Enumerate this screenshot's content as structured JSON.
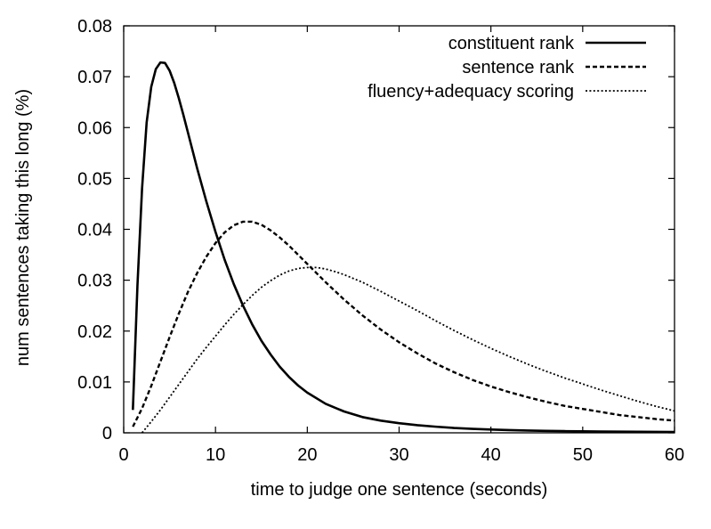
{
  "chart_data": {
    "type": "line",
    "title": "",
    "xlabel": "time to judge one sentence (seconds)",
    "ylabel": "num sentences taking this long (%)",
    "xlim": [
      0,
      60
    ],
    "ylim": [
      0,
      0.08
    ],
    "xticks": [
      "0",
      "10",
      "20",
      "30",
      "40",
      "50",
      "60"
    ],
    "yticks": [
      "0",
      "0.01",
      "0.02",
      "0.03",
      "0.04",
      "0.05",
      "0.06",
      "0.07",
      "0.08"
    ],
    "grid": false,
    "legend_position": "top-right",
    "series": [
      {
        "name": "constituent rank",
        "style": "solid",
        "x": [
          1,
          1.5,
          2,
          2.5,
          3,
          3.5,
          4,
          4.5,
          5,
          5.5,
          6,
          6.5,
          7,
          7.5,
          8,
          9,
          10,
          11,
          12,
          13,
          14,
          15,
          16,
          17,
          18,
          19,
          20,
          22,
          24,
          26,
          28,
          30,
          32,
          34,
          36,
          38,
          40,
          42,
          44,
          46,
          48,
          50,
          52,
          54,
          56,
          58,
          60
        ],
        "y": [
          0.0045,
          0.029,
          0.048,
          0.061,
          0.068,
          0.0715,
          0.0728,
          0.0727,
          0.0712,
          0.0688,
          0.0658,
          0.0625,
          0.059,
          0.0555,
          0.052,
          0.0455,
          0.0395,
          0.034,
          0.0292,
          0.025,
          0.0213,
          0.0181,
          0.0154,
          0.013,
          0.011,
          0.0093,
          0.0079,
          0.0057,
          0.0042,
          0.0031,
          0.0024,
          0.0019,
          0.0015,
          0.0012,
          0.00095,
          0.00078,
          0.00064,
          0.00053,
          0.00045,
          0.00038,
          0.00033,
          0.00029,
          0.00026,
          0.00023,
          0.00021,
          0.00019,
          0.00017
        ]
      },
      {
        "name": "sentence rank",
        "style": "dashed",
        "x": [
          1,
          2,
          3,
          4,
          5,
          6,
          7,
          8,
          9,
          10,
          11,
          12,
          13,
          14,
          15,
          16,
          17,
          18,
          19,
          20,
          22,
          24,
          26,
          28,
          30,
          32,
          34,
          36,
          38,
          40,
          42,
          44,
          46,
          48,
          50,
          52,
          54,
          56,
          58,
          60
        ],
        "y": [
          0.0012,
          0.0048,
          0.0092,
          0.014,
          0.0188,
          0.0234,
          0.0277,
          0.0314,
          0.0346,
          0.0373,
          0.0394,
          0.0408,
          0.0415,
          0.0415,
          0.0409,
          0.0398,
          0.0384,
          0.0368,
          0.035,
          0.0332,
          0.0296,
          0.0262,
          0.0231,
          0.0203,
          0.0178,
          0.0156,
          0.0136,
          0.0119,
          0.0104,
          0.0091,
          0.008,
          0.007,
          0.0061,
          0.0053,
          0.0047,
          0.0041,
          0.0035,
          0.0031,
          0.0027,
          0.0024
        ]
      },
      {
        "name": "fluency+adequacy scoring",
        "style": "dotted",
        "x": [
          2,
          3,
          4,
          5,
          6,
          7,
          8,
          9,
          10,
          11,
          12,
          13,
          14,
          15,
          16,
          17,
          18,
          19,
          20,
          21,
          22,
          23,
          24,
          26,
          28,
          30,
          32,
          34,
          36,
          38,
          40,
          42,
          44,
          46,
          48,
          50,
          52,
          54,
          56,
          58,
          60
        ],
        "y": [
          0.0,
          0.0022,
          0.0045,
          0.007,
          0.0095,
          0.012,
          0.0145,
          0.0168,
          0.019,
          0.0212,
          0.0233,
          0.0252,
          0.027,
          0.0286,
          0.0299,
          0.031,
          0.0318,
          0.0323,
          0.0325,
          0.0325,
          0.0322,
          0.0317,
          0.0311,
          0.0296,
          0.0278,
          0.0259,
          0.024,
          0.022,
          0.0201,
          0.0183,
          0.0166,
          0.015,
          0.0135,
          0.0121,
          0.0108,
          0.0096,
          0.0084,
          0.0073,
          0.0062,
          0.0052,
          0.0043
        ]
      }
    ]
  }
}
